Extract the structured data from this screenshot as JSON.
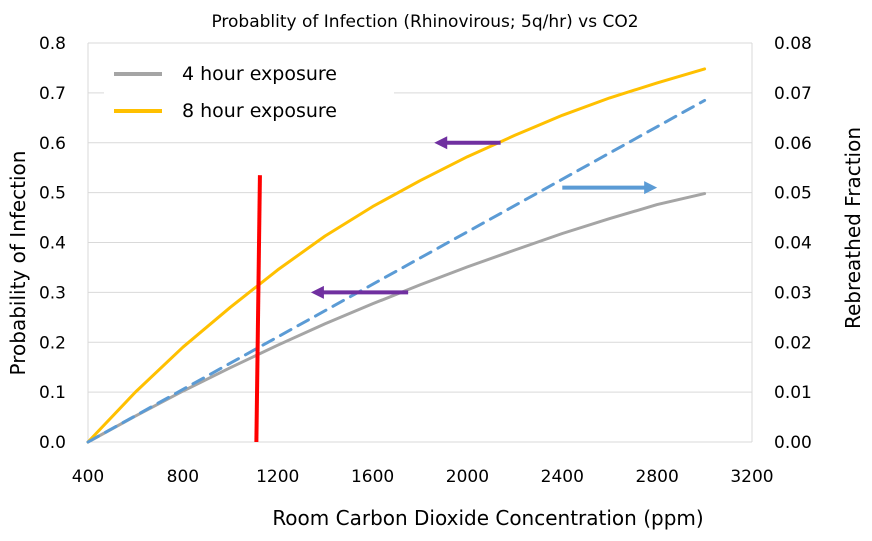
{
  "chart_data": {
    "type": "line",
    "title": "Probablity of Infection (Rhinovirous; 5q/hr) vs CO2",
    "xlabel": "Room Carbon Dioxide Concentration (ppm)",
    "ylabel": "Probability of Infection",
    "y2label": "Rebreathed Fraction",
    "xlim": [
      400,
      3200
    ],
    "ylim": [
      0,
      0.8
    ],
    "y2lim": [
      0,
      0.08
    ],
    "xticks": [
      "400",
      "800",
      "1200",
      "1600",
      "2000",
      "2400",
      "2800",
      "3200"
    ],
    "yticks": [
      "0.0",
      "0.1",
      "0.2",
      "0.3",
      "0.4",
      "0.5",
      "0.6",
      "0.7",
      "0.8"
    ],
    "y2ticks": [
      "0.00",
      "0.01",
      "0.02",
      "0.03",
      "0.04",
      "0.05",
      "0.06",
      "0.07",
      "0.08"
    ],
    "grid": true,
    "legend_position": "top-left",
    "series": [
      {
        "name": "4 hour exposure",
        "axis": "left",
        "color": "#A5A5A5",
        "style": "solid",
        "x": [
          400,
          600,
          800,
          1000,
          1200,
          1400,
          1600,
          1800,
          2000,
          2200,
          2400,
          2600,
          2800,
          3000
        ],
        "y": [
          0.0,
          0.052,
          0.102,
          0.149,
          0.194,
          0.237,
          0.277,
          0.315,
          0.351,
          0.385,
          0.418,
          0.448,
          0.476,
          0.498
        ]
      },
      {
        "name": "8 hour exposure",
        "axis": "left",
        "color": "#FFC000",
        "style": "solid",
        "x": [
          400,
          600,
          800,
          1000,
          1200,
          1400,
          1600,
          1800,
          2000,
          2200,
          2400,
          2600,
          2800,
          3000
        ],
        "y": [
          0.0,
          0.1,
          0.19,
          0.27,
          0.345,
          0.413,
          0.472,
          0.524,
          0.572,
          0.615,
          0.655,
          0.69,
          0.72,
          0.748
        ]
      },
      {
        "axis": "right",
        "color": "#5B9BD5",
        "style": "dashed",
        "x": [
          400,
          3000
        ],
        "y": [
          0.0,
          0.0685
        ]
      }
    ],
    "annotations": [
      {
        "kind": "vertical-line",
        "color": "#FF0000",
        "x_bottom": 1110,
        "x_top": 1125,
        "y_bottom": 0.0,
        "y_top": 0.535
      },
      {
        "kind": "arrow",
        "direction": "left",
        "color": "#7030A0",
        "x_from": 2140,
        "x_to": 1860,
        "y": 0.6,
        "axis": "left"
      },
      {
        "kind": "arrow",
        "direction": "left",
        "color": "#7030A0",
        "x_from": 1750,
        "x_to": 1340,
        "y": 0.3,
        "axis": "left"
      },
      {
        "kind": "arrow",
        "direction": "right",
        "color": "#5B9BD5",
        "x_from": 2400,
        "x_to": 2800,
        "y": 0.051,
        "axis": "right"
      }
    ]
  }
}
